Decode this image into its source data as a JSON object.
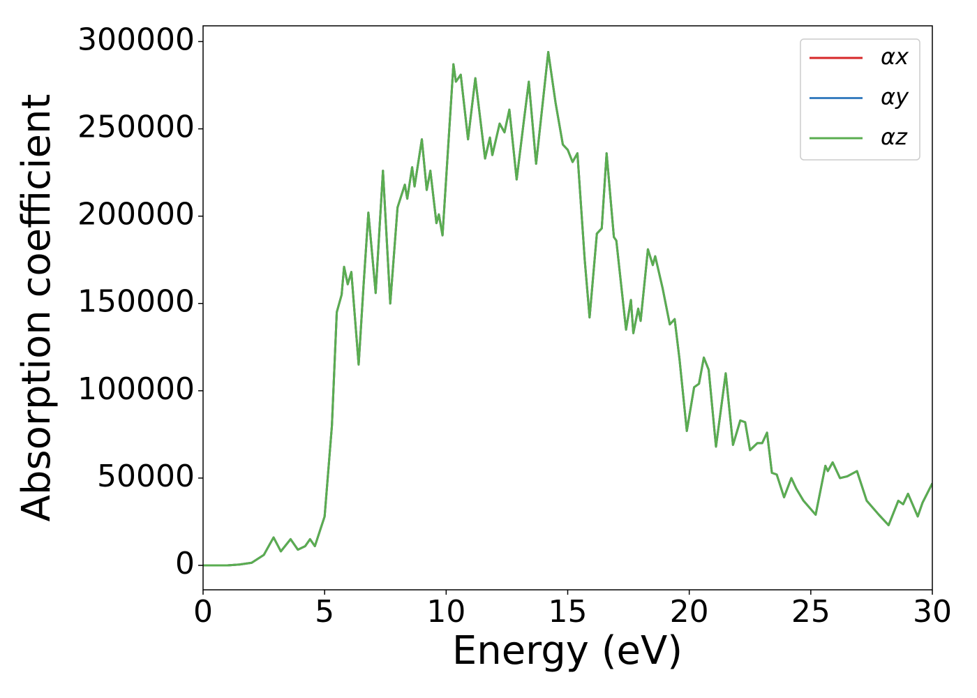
{
  "chart_data": {
    "type": "line",
    "xlabel": "Energy (eV)",
    "ylabel": "Absorption coefficient",
    "x": [
      0,
      1,
      1.5,
      2,
      2.5,
      2.9,
      3.2,
      3.6,
      3.9,
      4.2,
      4.4,
      4.6,
      5,
      5.3,
      5.5,
      5.7,
      5.8,
      5.95,
      6.1,
      6.4,
      6.6,
      6.8,
      7.1,
      7.4,
      7.7,
      8.0,
      8.3,
      8.4,
      8.6,
      8.7,
      9.0,
      9.2,
      9.35,
      9.6,
      9.7,
      9.85,
      10.3,
      10.4,
      10.6,
      10.9,
      11.2,
      11.6,
      11.8,
      11.9,
      12.2,
      12.4,
      12.6,
      12.9,
      13.2,
      13.4,
      13.7,
      14.2,
      14.5,
      14.8,
      15.0,
      15.2,
      15.4,
      15.7,
      15.9,
      16.2,
      16.4,
      16.6,
      16.9,
      17.0,
      17.4,
      17.6,
      17.7,
      17.9,
      18.0,
      18.3,
      18.5,
      18.6,
      18.9,
      19.2,
      19.4,
      19.6,
      19.9,
      20.2,
      20.4,
      20.6,
      20.8,
      21.1,
      21.5,
      21.8,
      22.1,
      22.3,
      22.5,
      22.8,
      23.0,
      23.2,
      23.4,
      23.6,
      23.9,
      24.2,
      24.4,
      24.7,
      25.2,
      25.6,
      25.7,
      25.9,
      26.2,
      26.5,
      26.9,
      27.3,
      27.8,
      28.2,
      28.6,
      28.8,
      29.0,
      29.4,
      29.6,
      30
    ],
    "series": [
      {
        "name": "αx",
        "color": "#d62728",
        "values": [
          0,
          0,
          500,
          1500,
          6000,
          16000,
          8000,
          15000,
          9000,
          11000,
          15000,
          11000,
          28000,
          80000,
          145000,
          155000,
          171000,
          161000,
          168000,
          115000,
          160000,
          202000,
          156000,
          226000,
          150000,
          205000,
          218000,
          210000,
          228000,
          217000,
          244000,
          215000,
          226000,
          196000,
          201000,
          189000,
          287000,
          277000,
          281000,
          244000,
          279000,
          233000,
          245000,
          235000,
          253000,
          248000,
          261000,
          221000,
          255000,
          277000,
          230000,
          294000,
          265000,
          241000,
          238000,
          231000,
          236000,
          175000,
          142000,
          190000,
          193000,
          236000,
          188000,
          186000,
          135000,
          152000,
          133000,
          147000,
          140000,
          181000,
          172000,
          177000,
          159000,
          138000,
          141000,
          118000,
          77000,
          102000,
          104000,
          119000,
          112000,
          68000,
          110000,
          69000,
          83000,
          82000,
          66000,
          70000,
          70000,
          76000,
          53000,
          52000,
          39000,
          50000,
          44000,
          37000,
          29000,
          57000,
          54000,
          59000,
          50000,
          51000,
          54000,
          37000,
          29000,
          23000,
          37000,
          35000,
          41000,
          28000,
          36000,
          47000
        ]
      },
      {
        "name": "αy",
        "color": "#3a7fc0",
        "values": [
          0,
          0,
          500,
          1500,
          6000,
          16000,
          8000,
          15000,
          9000,
          11000,
          15000,
          11000,
          28000,
          80000,
          145000,
          155000,
          171000,
          161000,
          168000,
          115000,
          160000,
          202000,
          156000,
          226000,
          150000,
          205000,
          218000,
          210000,
          228000,
          217000,
          244000,
          215000,
          226000,
          196000,
          201000,
          189000,
          287000,
          277000,
          281000,
          244000,
          279000,
          233000,
          245000,
          235000,
          253000,
          248000,
          261000,
          221000,
          255000,
          277000,
          230000,
          294000,
          265000,
          241000,
          238000,
          231000,
          236000,
          175000,
          142000,
          190000,
          193000,
          236000,
          188000,
          186000,
          135000,
          152000,
          133000,
          147000,
          140000,
          181000,
          172000,
          177000,
          159000,
          138000,
          141000,
          118000,
          77000,
          102000,
          104000,
          119000,
          112000,
          68000,
          110000,
          69000,
          83000,
          82000,
          66000,
          70000,
          70000,
          76000,
          53000,
          52000,
          39000,
          50000,
          44000,
          37000,
          29000,
          57000,
          54000,
          59000,
          50000,
          51000,
          54000,
          37000,
          29000,
          23000,
          37000,
          35000,
          41000,
          28000,
          36000,
          47000
        ]
      },
      {
        "name": "αz",
        "color": "#5aad50",
        "values": [
          0,
          0,
          500,
          1500,
          6000,
          16000,
          8000,
          15000,
          9000,
          11000,
          15000,
          11000,
          28000,
          80000,
          145000,
          155000,
          171000,
          161000,
          168000,
          115000,
          160000,
          202000,
          156000,
          226000,
          150000,
          205000,
          218000,
          210000,
          228000,
          217000,
          244000,
          215000,
          226000,
          196000,
          201000,
          189000,
          287000,
          277000,
          281000,
          244000,
          279000,
          233000,
          245000,
          235000,
          253000,
          248000,
          261000,
          221000,
          255000,
          277000,
          230000,
          294000,
          265000,
          241000,
          238000,
          231000,
          236000,
          175000,
          142000,
          190000,
          193000,
          236000,
          188000,
          186000,
          135000,
          152000,
          133000,
          147000,
          140000,
          181000,
          172000,
          177000,
          159000,
          138000,
          141000,
          118000,
          77000,
          102000,
          104000,
          119000,
          112000,
          68000,
          110000,
          69000,
          83000,
          82000,
          66000,
          70000,
          70000,
          76000,
          53000,
          52000,
          39000,
          50000,
          44000,
          37000,
          29000,
          57000,
          54000,
          59000,
          50000,
          51000,
          54000,
          37000,
          29000,
          23000,
          37000,
          35000,
          41000,
          28000,
          36000,
          47000
        ]
      }
    ],
    "xlim": [
      0,
      30
    ],
    "xticks": [
      0,
      5,
      10,
      15,
      20,
      25,
      30
    ],
    "ylim": [
      -14000,
      309000
    ],
    "yticks": [
      0,
      50000,
      100000,
      150000,
      200000,
      250000,
      300000
    ],
    "grid": false,
    "legend": "upper right"
  }
}
